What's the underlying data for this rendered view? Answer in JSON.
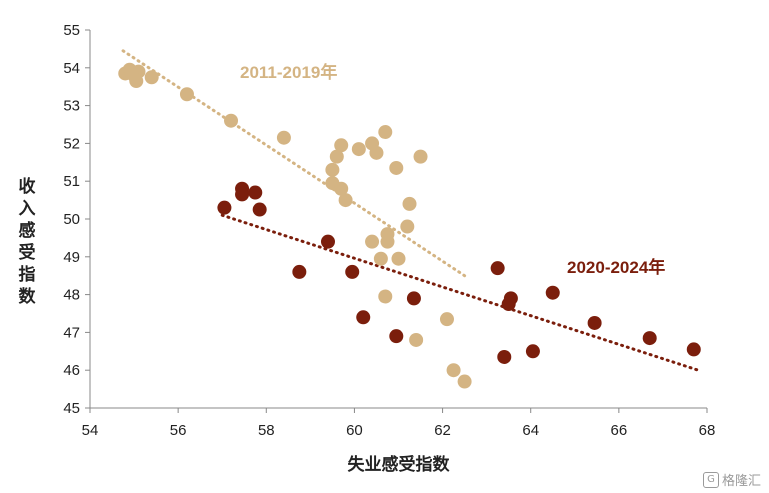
{
  "chart_data": {
    "type": "scatter",
    "xlabel": "失业感受指数",
    "ylabel": "收入感受指数",
    "xlim": [
      54,
      68
    ],
    "ylim": [
      45,
      55
    ],
    "xticks": [
      "54",
      "56",
      "58",
      "60",
      "62",
      "64",
      "66",
      "68"
    ],
    "yticks": [
      "45",
      "46",
      "47",
      "48",
      "49",
      "50",
      "51",
      "52",
      "53",
      "54",
      "55"
    ],
    "grid": false,
    "series": [
      {
        "name": "2011-2019年",
        "color": "#D4B483",
        "points": [
          {
            "x": 54.8,
            "y": 53.85
          },
          {
            "x": 54.9,
            "y": 53.95
          },
          {
            "x": 55.0,
            "y": 53.8
          },
          {
            "x": 55.1,
            "y": 53.9
          },
          {
            "x": 55.05,
            "y": 53.65
          },
          {
            "x": 54.95,
            "y": 53.85
          },
          {
            "x": 55.4,
            "y": 53.75
          },
          {
            "x": 56.2,
            "y": 53.3
          },
          {
            "x": 57.2,
            "y": 52.6
          },
          {
            "x": 58.4,
            "y": 52.15
          },
          {
            "x": 59.7,
            "y": 51.95
          },
          {
            "x": 60.1,
            "y": 51.85
          },
          {
            "x": 60.4,
            "y": 52.0
          },
          {
            "x": 60.7,
            "y": 52.3
          },
          {
            "x": 59.6,
            "y": 51.65
          },
          {
            "x": 60.5,
            "y": 51.75
          },
          {
            "x": 61.5,
            "y": 51.65
          },
          {
            "x": 60.95,
            "y": 51.35
          },
          {
            "x": 59.5,
            "y": 51.3
          },
          {
            "x": 59.5,
            "y": 50.95
          },
          {
            "x": 59.7,
            "y": 50.8
          },
          {
            "x": 59.8,
            "y": 50.5
          },
          {
            "x": 61.25,
            "y": 50.4
          },
          {
            "x": 61.2,
            "y": 49.8
          },
          {
            "x": 60.75,
            "y": 49.6
          },
          {
            "x": 60.4,
            "y": 49.4
          },
          {
            "x": 60.75,
            "y": 49.4
          },
          {
            "x": 60.6,
            "y": 48.95
          },
          {
            "x": 61.0,
            "y": 48.95
          },
          {
            "x": 60.7,
            "y": 47.95
          },
          {
            "x": 62.1,
            "y": 47.35
          },
          {
            "x": 61.4,
            "y": 46.8
          },
          {
            "x": 62.25,
            "y": 46.0
          },
          {
            "x": 62.5,
            "y": 45.7
          }
        ],
        "trendline": {
          "x": [
            54.75,
            62.5
          ],
          "y": [
            54.45,
            48.5
          ]
        },
        "label": "2011-2019年"
      },
      {
        "name": "2020-2024年",
        "color": "#7B1E0C",
        "points": [
          {
            "x": 57.05,
            "y": 50.3
          },
          {
            "x": 57.45,
            "y": 50.8
          },
          {
            "x": 57.45,
            "y": 50.65
          },
          {
            "x": 57.75,
            "y": 50.7
          },
          {
            "x": 57.85,
            "y": 50.25
          },
          {
            "x": 58.75,
            "y": 48.6
          },
          {
            "x": 59.4,
            "y": 49.4
          },
          {
            "x": 59.95,
            "y": 48.6
          },
          {
            "x": 60.2,
            "y": 47.4
          },
          {
            "x": 60.95,
            "y": 46.9
          },
          {
            "x": 61.35,
            "y": 47.9
          },
          {
            "x": 63.25,
            "y": 48.7
          },
          {
            "x": 63.55,
            "y": 47.9
          },
          {
            "x": 63.5,
            "y": 47.75
          },
          {
            "x": 63.4,
            "y": 46.35
          },
          {
            "x": 64.05,
            "y": 46.5
          },
          {
            "x": 64.5,
            "y": 48.05
          },
          {
            "x": 65.45,
            "y": 47.25
          },
          {
            "x": 66.7,
            "y": 46.85
          },
          {
            "x": 67.7,
            "y": 46.55
          }
        ],
        "trendline": {
          "x": [
            57.0,
            67.8
          ],
          "y": [
            50.1,
            46.0
          ]
        },
        "label": "2020-2024年"
      }
    ]
  },
  "watermark": {
    "icon": "G",
    "text": "格隆汇"
  }
}
